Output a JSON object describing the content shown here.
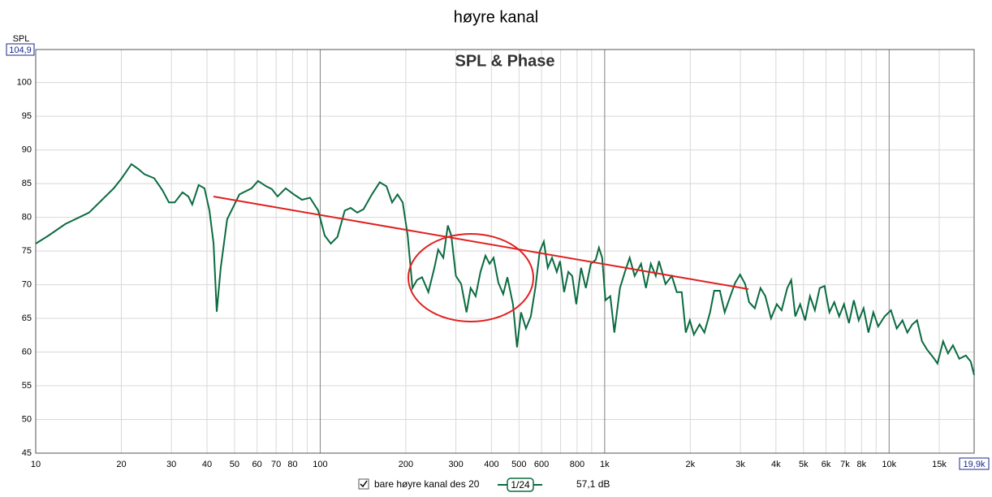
{
  "chart_data": {
    "type": "line",
    "title": "høyre kanal",
    "subtitle": "SPL & Phase",
    "ylabel": "SPL",
    "x": [
      10,
      11.1,
      12.7,
      15.4,
      18.8,
      20.06,
      21.7,
      22.9,
      24.1,
      26.1,
      27.9,
      29.4,
      30.8,
      32.8,
      34.4,
      35.5,
      37.4,
      39.2,
      40.8,
      42.2,
      43.3,
      44.7,
      47.1,
      52,
      57.4,
      60.5,
      64.6,
      67.6,
      70.8,
      75.6,
      80.8,
      86.3,
      92.1,
      98.4,
      103.7,
      109,
      115,
      122,
      128,
      135,
      142,
      152,
      162,
      171,
      179,
      187,
      195,
      203,
      211,
      219,
      228,
      240,
      252,
      260,
      271,
      281,
      289,
      300,
      313,
      327,
      338,
      352,
      366,
      381,
      394,
      407,
      423,
      440,
      455,
      476,
      492,
      508,
      529,
      550,
      572,
      591,
      611,
      631,
      653,
      679,
      697,
      720,
      745,
      769,
      795,
      826,
      859,
      894,
      930,
      955,
      980,
      1006,
      1047,
      1082,
      1132,
      1178,
      1225,
      1275,
      1343,
      1397,
      1453,
      1512,
      1553,
      1636,
      1723,
      1793,
      1866,
      1928,
      1993,
      2060,
      2157,
      2241,
      2347,
      2427,
      2541,
      2642,
      2767,
      2878,
      2994,
      3117,
      3219,
      3371,
      3531,
      3673,
      3845,
      4027,
      4188,
      4385,
      4529,
      4678,
      4866,
      5066,
      5269,
      5481,
      5701,
      5930,
      6168,
      6416,
      6674,
      6943,
      7223,
      7514,
      7816,
      8131,
      8458,
      8798,
      9152,
      9638,
      10150,
      10640,
      11140,
      11590,
      12060,
      12540,
      13050,
      13580,
      14300,
      14790,
      15480,
      16110,
      16760,
      17650,
      18610,
      19360,
      19900
    ],
    "series": [
      {
        "name": "bare høyre kanal des 20",
        "color": "#0b6b40",
        "values": [
          76.1,
          77.3,
          79.0,
          80.7,
          84.3,
          85.8,
          87.9,
          87.2,
          86.4,
          85.8,
          84.0,
          82.2,
          82.2,
          83.7,
          83.1,
          81.9,
          84.8,
          84.3,
          81.0,
          76.1,
          66.0,
          72.5,
          79.7,
          83.4,
          84.3,
          85.4,
          84.6,
          84.2,
          83.1,
          84.3,
          83.4,
          82.6,
          82.9,
          81.0,
          77.3,
          76.1,
          77.1,
          81.0,
          81.4,
          80.7,
          81.2,
          83.4,
          85.2,
          84.6,
          82.2,
          83.4,
          82.2,
          77.3,
          69.5,
          70.7,
          71.1,
          68.9,
          72.5,
          75.2,
          74.0,
          78.8,
          77.3,
          71.3,
          70.1,
          65.9,
          69.5,
          68.3,
          71.9,
          74.3,
          73.1,
          74.0,
          70.3,
          68.6,
          71.1,
          67.1,
          60.7,
          65.9,
          63.5,
          65.3,
          69.8,
          74.9,
          76.4,
          72.5,
          74.0,
          71.9,
          73.5,
          68.9,
          71.9,
          71.3,
          67.1,
          72.5,
          69.5,
          73.1,
          73.7,
          75.5,
          74.0,
          67.7,
          68.3,
          62.9,
          69.5,
          71.9,
          74.0,
          71.3,
          73.1,
          69.5,
          73.1,
          71.3,
          73.5,
          70.1,
          71.3,
          68.9,
          68.9,
          62.9,
          64.7,
          62.6,
          64.1,
          62.9,
          65.9,
          69.1,
          69.1,
          65.9,
          68.3,
          70.3,
          71.5,
          70.1,
          67.4,
          66.5,
          69.5,
          68.3,
          65.0,
          67.1,
          66.2,
          69.5,
          70.7,
          65.3,
          67.1,
          64.7,
          68.3,
          66.2,
          69.5,
          69.8,
          65.9,
          67.4,
          65.3,
          67.1,
          64.3,
          67.7,
          64.7,
          66.5,
          62.9,
          65.9,
          63.8,
          65.3,
          66.2,
          63.5,
          64.7,
          62.9,
          64.1,
          64.7,
          61.6,
          60.4,
          59.2,
          58.3,
          61.6,
          59.8,
          61.0,
          59.0,
          59.5,
          58.6,
          56.6
        ]
      }
    ],
    "smoothing": "1/24",
    "legend_value": "57,1 dB",
    "xlim": [
      10,
      19900
    ],
    "ylim": [
      45,
      104.9
    ],
    "xscale": "log",
    "grid": true,
    "xticks": [
      10,
      20,
      30,
      40,
      50,
      60,
      70,
      80,
      100,
      200,
      300,
      400,
      500,
      600,
      800,
      {
        "value": 1000,
        "label": "1k"
      },
      {
        "value": 2000,
        "label": "2k"
      },
      {
        "value": 3000,
        "label": "3k"
      },
      {
        "value": 4000,
        "label": "4k"
      },
      {
        "value": 5000,
        "label": "5k"
      },
      {
        "value": 6000,
        "label": "6k"
      },
      {
        "value": 7000,
        "label": "7k"
      },
      {
        "value": 8000,
        "label": "8k"
      },
      {
        "value": 10000,
        "label": "10k"
      },
      {
        "value": 15000,
        "label": "15k"
      },
      {
        "value": 19900,
        "label": "19,9k"
      }
    ],
    "xminor": [
      90,
      700,
      900,
      9000
    ],
    "yticks": [
      45,
      50,
      55,
      60,
      65,
      70,
      75,
      80,
      85,
      90,
      95,
      100,
      {
        "value": 104.9,
        "label": "104,9"
      }
    ]
  }
}
